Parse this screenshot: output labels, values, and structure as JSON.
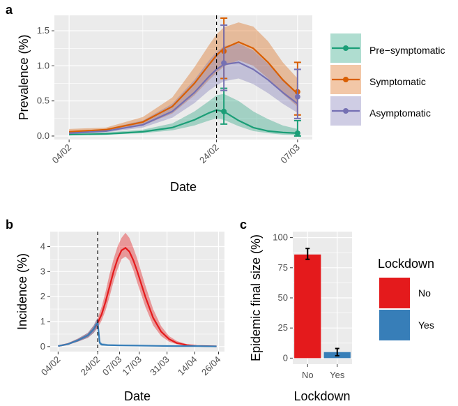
{
  "chart_data": [
    {
      "panel": "a",
      "type": "line",
      "xlabel": "Date",
      "ylabel": "Prevalence (%)",
      "xticks": [
        "04/02",
        "24/02",
        "07/03"
      ],
      "yticks": [
        0.0,
        0.5,
        1.0,
        1.5
      ],
      "ylim": [
        0,
        1.72
      ],
      "grid": true,
      "vline_date": "24/02",
      "series": [
        {
          "name": "Pre−symptomatic",
          "color": "#1b9e77",
          "x": [
            0,
            5,
            10,
            14,
            17,
            19,
            20,
            21,
            23,
            25,
            27,
            29,
            31
          ],
          "y": [
            0.02,
            0.03,
            0.06,
            0.12,
            0.23,
            0.33,
            0.37,
            0.35,
            0.22,
            0.12,
            0.07,
            0.05,
            0.04
          ],
          "lower": [
            0.01,
            0.02,
            0.04,
            0.08,
            0.15,
            0.22,
            0.25,
            0.23,
            0.14,
            0.07,
            0.04,
            0.02,
            0.01
          ],
          "upper": [
            0.04,
            0.05,
            0.09,
            0.18,
            0.35,
            0.5,
            0.58,
            0.6,
            0.5,
            0.35,
            0.24,
            0.15,
            0.1
          ],
          "points": [
            {
              "x": 21,
              "y": 0.35,
              "lo": 0.17,
              "hi": 0.68
            },
            {
              "x": 31,
              "y": 0.04,
              "lo": 0.0,
              "hi": 0.22
            }
          ]
        },
        {
          "name": "Symptomatic",
          "color": "#d95f02",
          "x": [
            0,
            5,
            10,
            14,
            17,
            19,
            20,
            21,
            23,
            25,
            27,
            29,
            31
          ],
          "y": [
            0.06,
            0.09,
            0.2,
            0.42,
            0.75,
            1.02,
            1.15,
            1.25,
            1.34,
            1.25,
            1.05,
            0.8,
            0.6
          ],
          "lower": [
            0.04,
            0.07,
            0.15,
            0.32,
            0.58,
            0.8,
            0.9,
            0.99,
            1.08,
            1.0,
            0.82,
            0.6,
            0.42
          ],
          "upper": [
            0.1,
            0.12,
            0.27,
            0.55,
            0.98,
            1.3,
            1.45,
            1.55,
            1.62,
            1.56,
            1.35,
            1.05,
            0.82
          ],
          "points": [
            {
              "x": 21,
              "y": 1.21,
              "lo": 0.82,
              "hi": 1.68
            },
            {
              "x": 31,
              "y": 0.63,
              "lo": 0.3,
              "hi": 1.05
            }
          ]
        },
        {
          "name": "Asymptomatic",
          "color": "#7570b3",
          "x": [
            0,
            5,
            10,
            14,
            17,
            19,
            20,
            21,
            23,
            25,
            27,
            29,
            31
          ],
          "y": [
            0.04,
            0.07,
            0.16,
            0.35,
            0.62,
            0.85,
            0.95,
            1.02,
            1.05,
            0.95,
            0.8,
            0.62,
            0.46
          ],
          "lower": [
            0.03,
            0.05,
            0.12,
            0.26,
            0.47,
            0.65,
            0.72,
            0.78,
            0.82,
            0.74,
            0.61,
            0.46,
            0.33
          ],
          "upper": [
            0.07,
            0.1,
            0.22,
            0.46,
            0.8,
            1.08,
            1.2,
            1.28,
            1.32,
            1.22,
            1.03,
            0.82,
            0.62
          ],
          "points": [
            {
              "x": 21,
              "y": 1.04,
              "lo": 0.65,
              "hi": 1.58
            },
            {
              "x": 31,
              "y": 0.56,
              "lo": 0.25,
              "hi": 0.95
            }
          ]
        }
      ]
    },
    {
      "panel": "b",
      "type": "line",
      "xlabel": "Date",
      "ylabel": "Incidence (%)",
      "xticks": [
        "04/02",
        "24/02",
        "07/03",
        "17/03",
        "31/03",
        "14/04",
        "26/04"
      ],
      "yticks": [
        0,
        1,
        2,
        3,
        4
      ],
      "ylim": [
        -0.2,
        4.6
      ],
      "grid": true,
      "vline_date": "24/02",
      "series": [
        {
          "name": "No",
          "color": "#e41a1c",
          "x": [
            0,
            5,
            10,
            15,
            18,
            20,
            22,
            24,
            26,
            28,
            30,
            32,
            34,
            36,
            38,
            40,
            44,
            48,
            52,
            56,
            60,
            65,
            70,
            75,
            80
          ],
          "y": [
            0.02,
            0.1,
            0.25,
            0.45,
            0.7,
            0.95,
            1.3,
            1.8,
            2.4,
            3.0,
            3.5,
            3.85,
            3.95,
            3.8,
            3.45,
            3.0,
            2.0,
            1.15,
            0.6,
            0.3,
            0.14,
            0.06,
            0.03,
            0.02,
            0.01
          ],
          "lower": [
            0.01,
            0.08,
            0.2,
            0.35,
            0.55,
            0.75,
            1.05,
            1.45,
            2.0,
            2.6,
            3.1,
            3.5,
            3.6,
            3.45,
            3.05,
            2.55,
            1.6,
            0.85,
            0.42,
            0.2,
            0.09,
            0.04,
            0.02,
            0.01,
            0.0
          ],
          "upper": [
            0.05,
            0.14,
            0.32,
            0.55,
            0.85,
            1.15,
            1.6,
            2.2,
            2.9,
            3.5,
            4.0,
            4.35,
            4.55,
            4.35,
            3.95,
            3.5,
            2.45,
            1.5,
            0.82,
            0.42,
            0.22,
            0.1,
            0.05,
            0.03,
            0.02
          ]
        },
        {
          "name": "Yes",
          "color": "#377eb8",
          "x": [
            0,
            5,
            10,
            15,
            18,
            19,
            20,
            21,
            22,
            25,
            30,
            40,
            50,
            60,
            70,
            80
          ],
          "y": [
            0.02,
            0.1,
            0.25,
            0.45,
            0.7,
            0.85,
            0.95,
            0.15,
            0.08,
            0.06,
            0.05,
            0.04,
            0.03,
            0.02,
            0.02,
            0.01
          ],
          "lower": [
            0.01,
            0.08,
            0.2,
            0.35,
            0.55,
            0.68,
            0.75,
            0.08,
            0.04,
            0.03,
            0.02,
            0.02,
            0.01,
            0.01,
            0.0,
            0.0
          ],
          "upper": [
            0.05,
            0.14,
            0.32,
            0.55,
            0.85,
            1.02,
            1.15,
            0.25,
            0.14,
            0.1,
            0.08,
            0.06,
            0.05,
            0.04,
            0.03,
            0.02
          ]
        }
      ]
    },
    {
      "panel": "c",
      "type": "bar",
      "xlabel": "Lockdown",
      "ylabel": "Epidemic final size (%)",
      "categories": [
        "No",
        "Yes"
      ],
      "values": [
        86,
        5
      ],
      "errors": [
        [
          82,
          91
        ],
        [
          2,
          8
        ]
      ],
      "colors": [
        "#e41a1c",
        "#377eb8"
      ],
      "yticks": [
        0,
        25,
        50,
        75,
        100
      ],
      "ylim": [
        -5,
        105
      ],
      "grid": true
    }
  ],
  "panel_labels": [
    "a",
    "b",
    "c"
  ],
  "legend_a": {
    "items": [
      "Pre−symptomatic",
      "Symptomatic",
      "Asymptomatic"
    ],
    "colors": [
      "#1b9e77",
      "#d95f02",
      "#7570b3"
    ],
    "placement": "right"
  },
  "legend_c": {
    "title": "Lockdown",
    "items": [
      "No",
      "Yes"
    ],
    "colors": [
      "#e41a1c",
      "#377eb8"
    ],
    "placement": "right"
  }
}
